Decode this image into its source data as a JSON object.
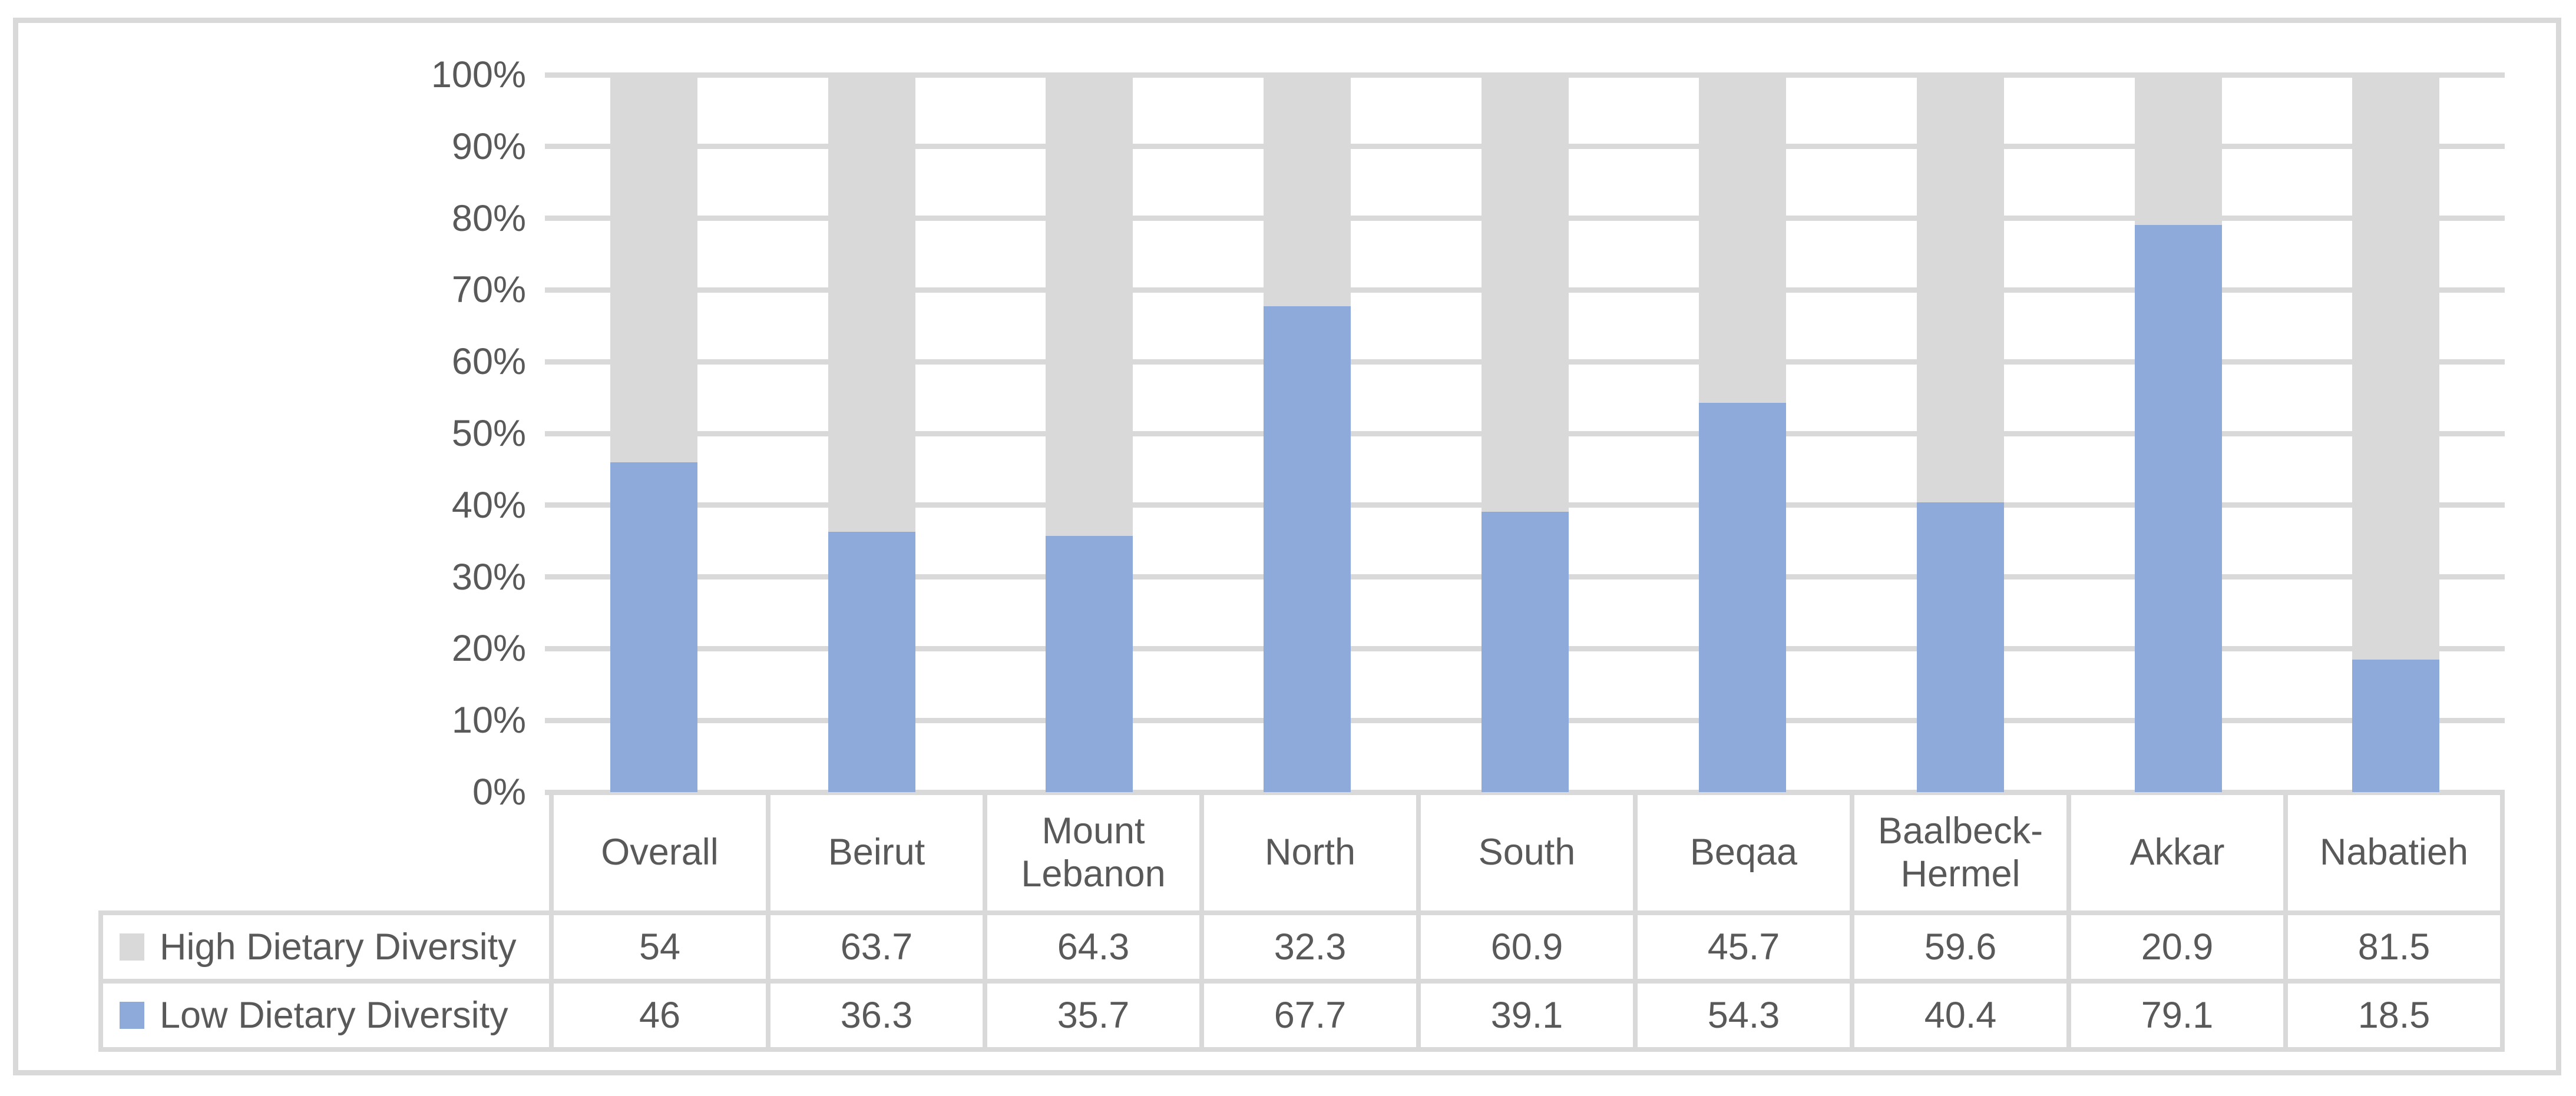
{
  "chart_data": {
    "type": "bar",
    "subtype": "stacked-100-percent-column",
    "title": "",
    "categories": [
      "Overall",
      "Beirut",
      "Mount Lebanon",
      "North",
      "South",
      "Beqaa",
      "Baalbeck-Hermel",
      "Akkar",
      "Nabatieh"
    ],
    "series": [
      {
        "name": "High Dietary Diversity",
        "color": "#d9d9d9",
        "values": [
          54,
          63.7,
          64.3,
          32.3,
          60.9,
          45.7,
          59.6,
          20.9,
          81.5
        ],
        "labels": [
          "54",
          "63.7",
          "64.3",
          "32.3",
          "60.9",
          "45.7",
          "59.6",
          "20.9",
          "81.5"
        ]
      },
      {
        "name": "Low Dietary Diversity",
        "color": "#8eaadb",
        "values": [
          46,
          36.3,
          35.7,
          67.7,
          39.1,
          54.3,
          40.4,
          79.1,
          18.5
        ],
        "labels": [
          "46",
          "36.3",
          "35.7",
          "67.7",
          "39.1",
          "54.3",
          "40.4",
          "79.1",
          "18.5"
        ]
      }
    ],
    "y_axis": {
      "min": 0,
      "max": 100,
      "step": 10,
      "tick_labels": [
        "0%",
        "10%",
        "20%",
        "30%",
        "40%",
        "50%",
        "60%",
        "70%",
        "80%",
        "90%",
        "100%"
      ]
    },
    "legend_position": "data-table-left",
    "grid": true,
    "colors": {
      "grid": "#d9d9d9",
      "axis_text": "#595959",
      "table_border": "#d9d9d9",
      "frame_border": "#d9d9d9",
      "background": "#ffffff"
    }
  }
}
